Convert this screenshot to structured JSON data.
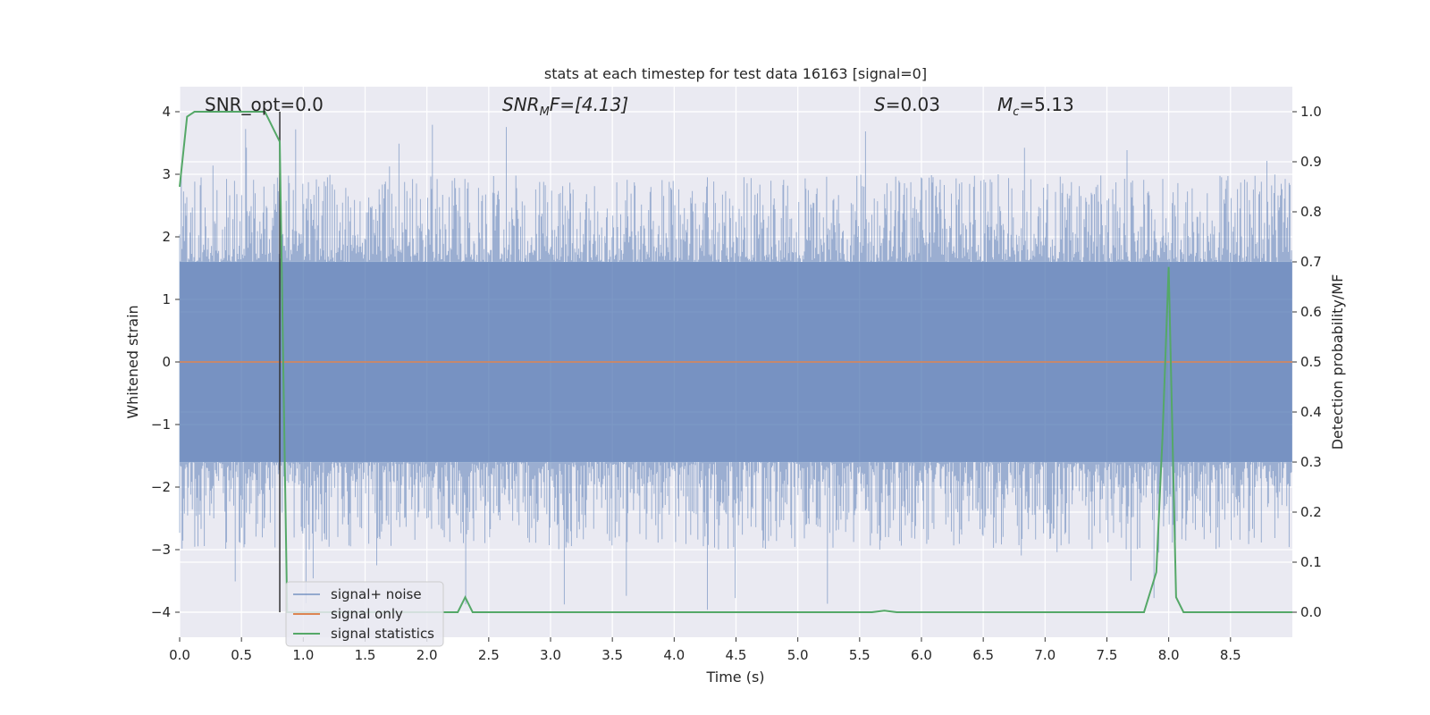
{
  "chart_data": {
    "type": "line",
    "title": "stats at each timestep for test data 16163 [signal=0]",
    "xlabel": "Time (s)",
    "ylabel_left": "Whitened strain",
    "ylabel_right": "Detection probability/MF",
    "xlim": [
      0.0,
      9.0
    ],
    "ylim_left": [
      -4.4,
      4.4
    ],
    "ylim_right": [
      -0.05,
      1.05
    ],
    "x_ticks": [
      "0.0",
      "0.5",
      "1.0",
      "1.5",
      "2.0",
      "2.5",
      "3.0",
      "3.5",
      "4.0",
      "4.5",
      "5.0",
      "5.5",
      "6.0",
      "6.5",
      "7.0",
      "7.5",
      "8.0",
      "8.5"
    ],
    "y_ticks_left": [
      "−4",
      "−3",
      "−2",
      "−1",
      "0",
      "1",
      "2",
      "3",
      "4"
    ],
    "y_ticks_right": [
      "0.0",
      "0.1",
      "0.2",
      "0.3",
      "0.4",
      "0.5",
      "0.6",
      "0.7",
      "0.8",
      "0.9",
      "1.0"
    ],
    "grid": true,
    "legend_position": "lower-left",
    "annotations": {
      "snr_opt": "SNR_opt=0.0",
      "snr_mf_prefix": "SNR",
      "snr_mf_sub": "M",
      "snr_mf_suffix": "F=[4.13]",
      "s_label": "S",
      "s_value": "=0.03",
      "mc_label": "M",
      "mc_sub": "c",
      "mc_value": "=5.13"
    },
    "vertical_marker_x": 0.81,
    "series": [
      {
        "name": "signal+ noise",
        "color": "#4c72b0",
        "description_values": "whitened noise between about -4 and 4",
        "envelope": {
          "core_amplitude": 1.6,
          "peak_upper_max": 4.0,
          "peak_lower_min": -4.0
        }
      },
      {
        "name": "signal only",
        "color": "#dd8452",
        "x": [
          0.0,
          9.0
        ],
        "y": [
          0.0,
          0.0
        ]
      },
      {
        "name": "signal statistics",
        "color": "#55a868",
        "axis": "right",
        "x": [
          0.0,
          0.06,
          0.12,
          0.18,
          0.6,
          0.69,
          0.75,
          0.81,
          0.87,
          0.93,
          1.0,
          2.0,
          2.25,
          2.31,
          2.37,
          2.45,
          5.6,
          5.7,
          5.8,
          7.8,
          7.9,
          7.95,
          8.0,
          8.06,
          8.12,
          8.2,
          8.3,
          9.0
        ],
        "y": [
          0.85,
          0.99,
          1.0,
          1.0,
          1.0,
          1.0,
          0.97,
          0.94,
          0.0,
          0.0,
          0.0,
          0.0,
          0.0,
          0.03,
          0.0,
          0.0,
          0.0,
          0.003,
          0.0,
          0.0,
          0.08,
          0.35,
          0.69,
          0.03,
          0.0,
          0.0,
          0.0,
          0.0
        ]
      }
    ]
  },
  "colors": {
    "axes_bg": "#eaeaf2",
    "grid": "#ffffff",
    "noise": "#4c72b0",
    "signal": "#dd8452",
    "stats": "#55a868",
    "marker": "#333333"
  }
}
